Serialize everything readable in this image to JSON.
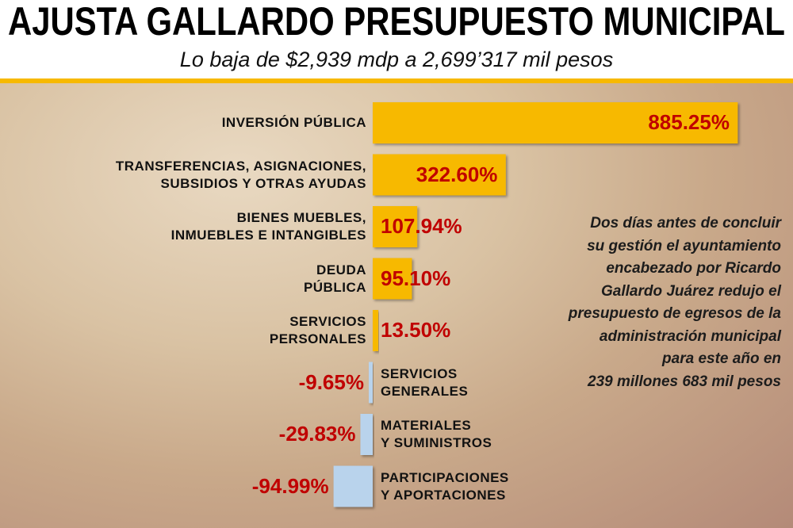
{
  "chart_data": {
    "type": "bar",
    "orientation": "horizontal",
    "title": "AJUSTA GALLARDO PRESUPUESTO MUNICIPAL",
    "subtitle": "Lo baja de $2,939 mdp a 2,699’317 mil pesos",
    "categories": [
      "INVERSIÓN PÚBLICA",
      "TRANSFERENCIAS, ASIGNACIONES,\nSUBSIDIOS Y OTRAS AYUDAS",
      "BIENES MUEBLES,\nINMUEBLES E INTANGIBLES",
      "DEUDA\nPÚBLICA",
      "SERVICIOS\nPERSONALES",
      "SERVICIOS\nGENERALES",
      "MATERIALES\nY SUMINISTROS",
      "PARTICIPACIONES\nY APORTACIONES"
    ],
    "values": [
      885.25,
      322.6,
      107.94,
      95.1,
      13.5,
      -9.65,
      -29.83,
      -94.99
    ],
    "value_labels": [
      "885.25%",
      "322.60%",
      "107.94%",
      "95.10%",
      "13.50%",
      "-9.65%",
      "-29.83%",
      "-94.99%"
    ],
    "positive_color": "#f7b900",
    "negative_color": "#b9d3ec",
    "label_color": "#c00000",
    "xlim": [
      -100,
      900
    ],
    "annotation": "Dos días antes de concluir\nsu gestión  el ayuntamiento\nencabezado por Ricardo\nGallardo Juárez redujo el\npresupuesto de egresos de la\nadministración municipal\npara este año en\n239 millones 683 mil pesos"
  }
}
